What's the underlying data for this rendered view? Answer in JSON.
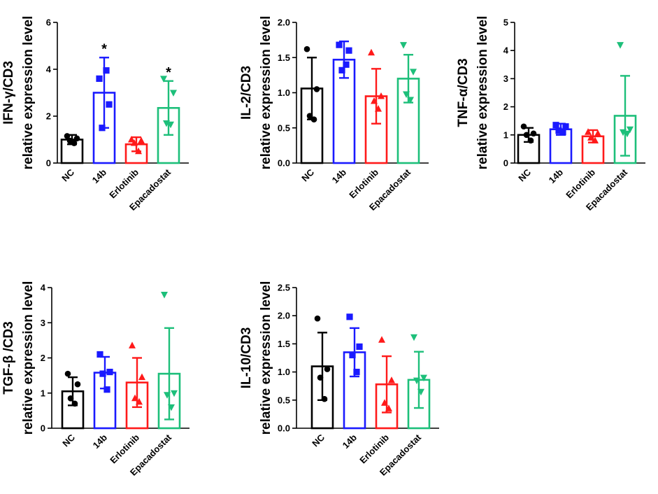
{
  "colors": {
    "NC": "#000000",
    "14b": "#1a1aff",
    "Erlotinib": "#ff1a1a",
    "Epacadostat": "#1dbf7a"
  },
  "markers": {
    "NC": "circle",
    "14b": "square",
    "Erlotinib": "triangle-up",
    "Epacadostat": "triangle-down"
  },
  "chart_data": [
    {
      "type": "bar",
      "ylabel_line1": "IFN-γ/CD3",
      "ylabel_line2": "relative expression level",
      "ylim": [
        0,
        6
      ],
      "yticks": [
        "0",
        "2",
        "4",
        "6"
      ],
      "tick_values": [
        0,
        2,
        4,
        6
      ],
      "categories": [
        "NC",
        "14b",
        "Erlotinib",
        "Epacadostat"
      ],
      "values": [
        1.0,
        3.0,
        0.8,
        2.35
      ],
      "sd": [
        0.2,
        1.5,
        0.3,
        1.15
      ],
      "points": [
        [
          1.15,
          1.05,
          0.95,
          0.85
        ],
        [
          3.6,
          2.5,
          1.5,
          3.95
        ],
        [
          1.0,
          0.95,
          0.85,
          0.5
        ],
        [
          3.6,
          3.0,
          1.7,
          1.65
        ]
      ],
      "significance": [
        "",
        "*",
        "",
        "*"
      ]
    },
    {
      "type": "bar",
      "ylabel_line1": "IL-2/CD3",
      "ylabel_line2": "relative expression level",
      "ylim": [
        0,
        2.0
      ],
      "yticks": [
        "0.0",
        "0.5",
        "1.0",
        "1.5",
        "2.0"
      ],
      "tick_values": [
        0,
        0.5,
        1.0,
        1.5,
        2.0
      ],
      "categories": [
        "NC",
        "14b",
        "Erlotinib",
        "Epacadostat"
      ],
      "values": [
        1.06,
        1.47,
        0.95,
        1.2
      ],
      "sd": [
        0.44,
        0.26,
        0.39,
        0.34
      ],
      "points": [
        [
          1.62,
          1.05,
          0.67,
          0.62
        ],
        [
          1.68,
          1.6,
          1.32,
          1.4
        ],
        [
          1.57,
          0.95,
          0.88,
          0.77
        ],
        [
          1.68,
          1.3,
          0.98,
          0.9
        ]
      ],
      "significance": [
        "",
        "",
        "",
        ""
      ]
    },
    {
      "type": "bar",
      "ylabel_line1": "TNF-α/CD3",
      "ylabel_line2": "relative expression level",
      "ylim": [
        0,
        5
      ],
      "yticks": [
        "0",
        "1",
        "2",
        "3",
        "4",
        "5"
      ],
      "tick_values": [
        0,
        1,
        2,
        3,
        4,
        5
      ],
      "categories": [
        "NC",
        "14b",
        "Erlotinib",
        "Epacadostat"
      ],
      "values": [
        1.0,
        1.2,
        0.95,
        1.68
      ],
      "sd": [
        0.25,
        0.2,
        0.22,
        1.42
      ],
      "points": [
        [
          1.3,
          1.05,
          1.0,
          0.8
        ],
        [
          1.35,
          1.3,
          1.15,
          1.1
        ],
        [
          1.1,
          1.05,
          0.9,
          0.8
        ],
        [
          4.2,
          1.2,
          1.1,
          1.05
        ]
      ],
      "significance": [
        "",
        "",
        "",
        ""
      ]
    },
    {
      "type": "bar",
      "ylabel_line1": "TGF-β /CD3",
      "ylabel_line2": "relative expression level",
      "ylim": [
        0,
        4
      ],
      "yticks": [
        "0",
        "1",
        "2",
        "3",
        "4"
      ],
      "tick_values": [
        0,
        1,
        2,
        3,
        4
      ],
      "categories": [
        "NC",
        "14b",
        "Erlotinib",
        "Epacadostat"
      ],
      "values": [
        1.05,
        1.58,
        1.3,
        1.55
      ],
      "sd": [
        0.4,
        0.45,
        0.7,
        1.3
      ],
      "points": [
        [
          1.55,
          1.25,
          0.85,
          0.7
        ],
        [
          2.1,
          1.6,
          1.55,
          1.1
        ],
        [
          2.35,
          1.45,
          0.85,
          0.75
        ],
        [
          3.8,
          1.0,
          0.95,
          0.6
        ]
      ],
      "significance": [
        "",
        "",
        "",
        ""
      ]
    },
    {
      "type": "bar",
      "ylabel_line1": "IL-10/CD3",
      "ylabel_line2": "relative expression level",
      "ylim": [
        0,
        2.5
      ],
      "yticks": [
        "0.0",
        "0.5",
        "1.0",
        "1.5",
        "2.0",
        "2.5"
      ],
      "tick_values": [
        0,
        0.5,
        1.0,
        1.5,
        2.0,
        2.5
      ],
      "categories": [
        "NC",
        "14b",
        "Erlotinib",
        "Epacadostat"
      ],
      "values": [
        1.1,
        1.35,
        0.78,
        0.86
      ],
      "sd": [
        0.6,
        0.43,
        0.5,
        0.5
      ],
      "points": [
        [
          1.95,
          1.05,
          0.9,
          0.52
        ],
        [
          1.98,
          1.45,
          1.3,
          1.0
        ],
        [
          1.57,
          0.85,
          0.45,
          0.35
        ],
        [
          1.62,
          0.9,
          0.85,
          0.65
        ]
      ],
      "significance": [
        "",
        "",
        "",
        ""
      ]
    }
  ]
}
